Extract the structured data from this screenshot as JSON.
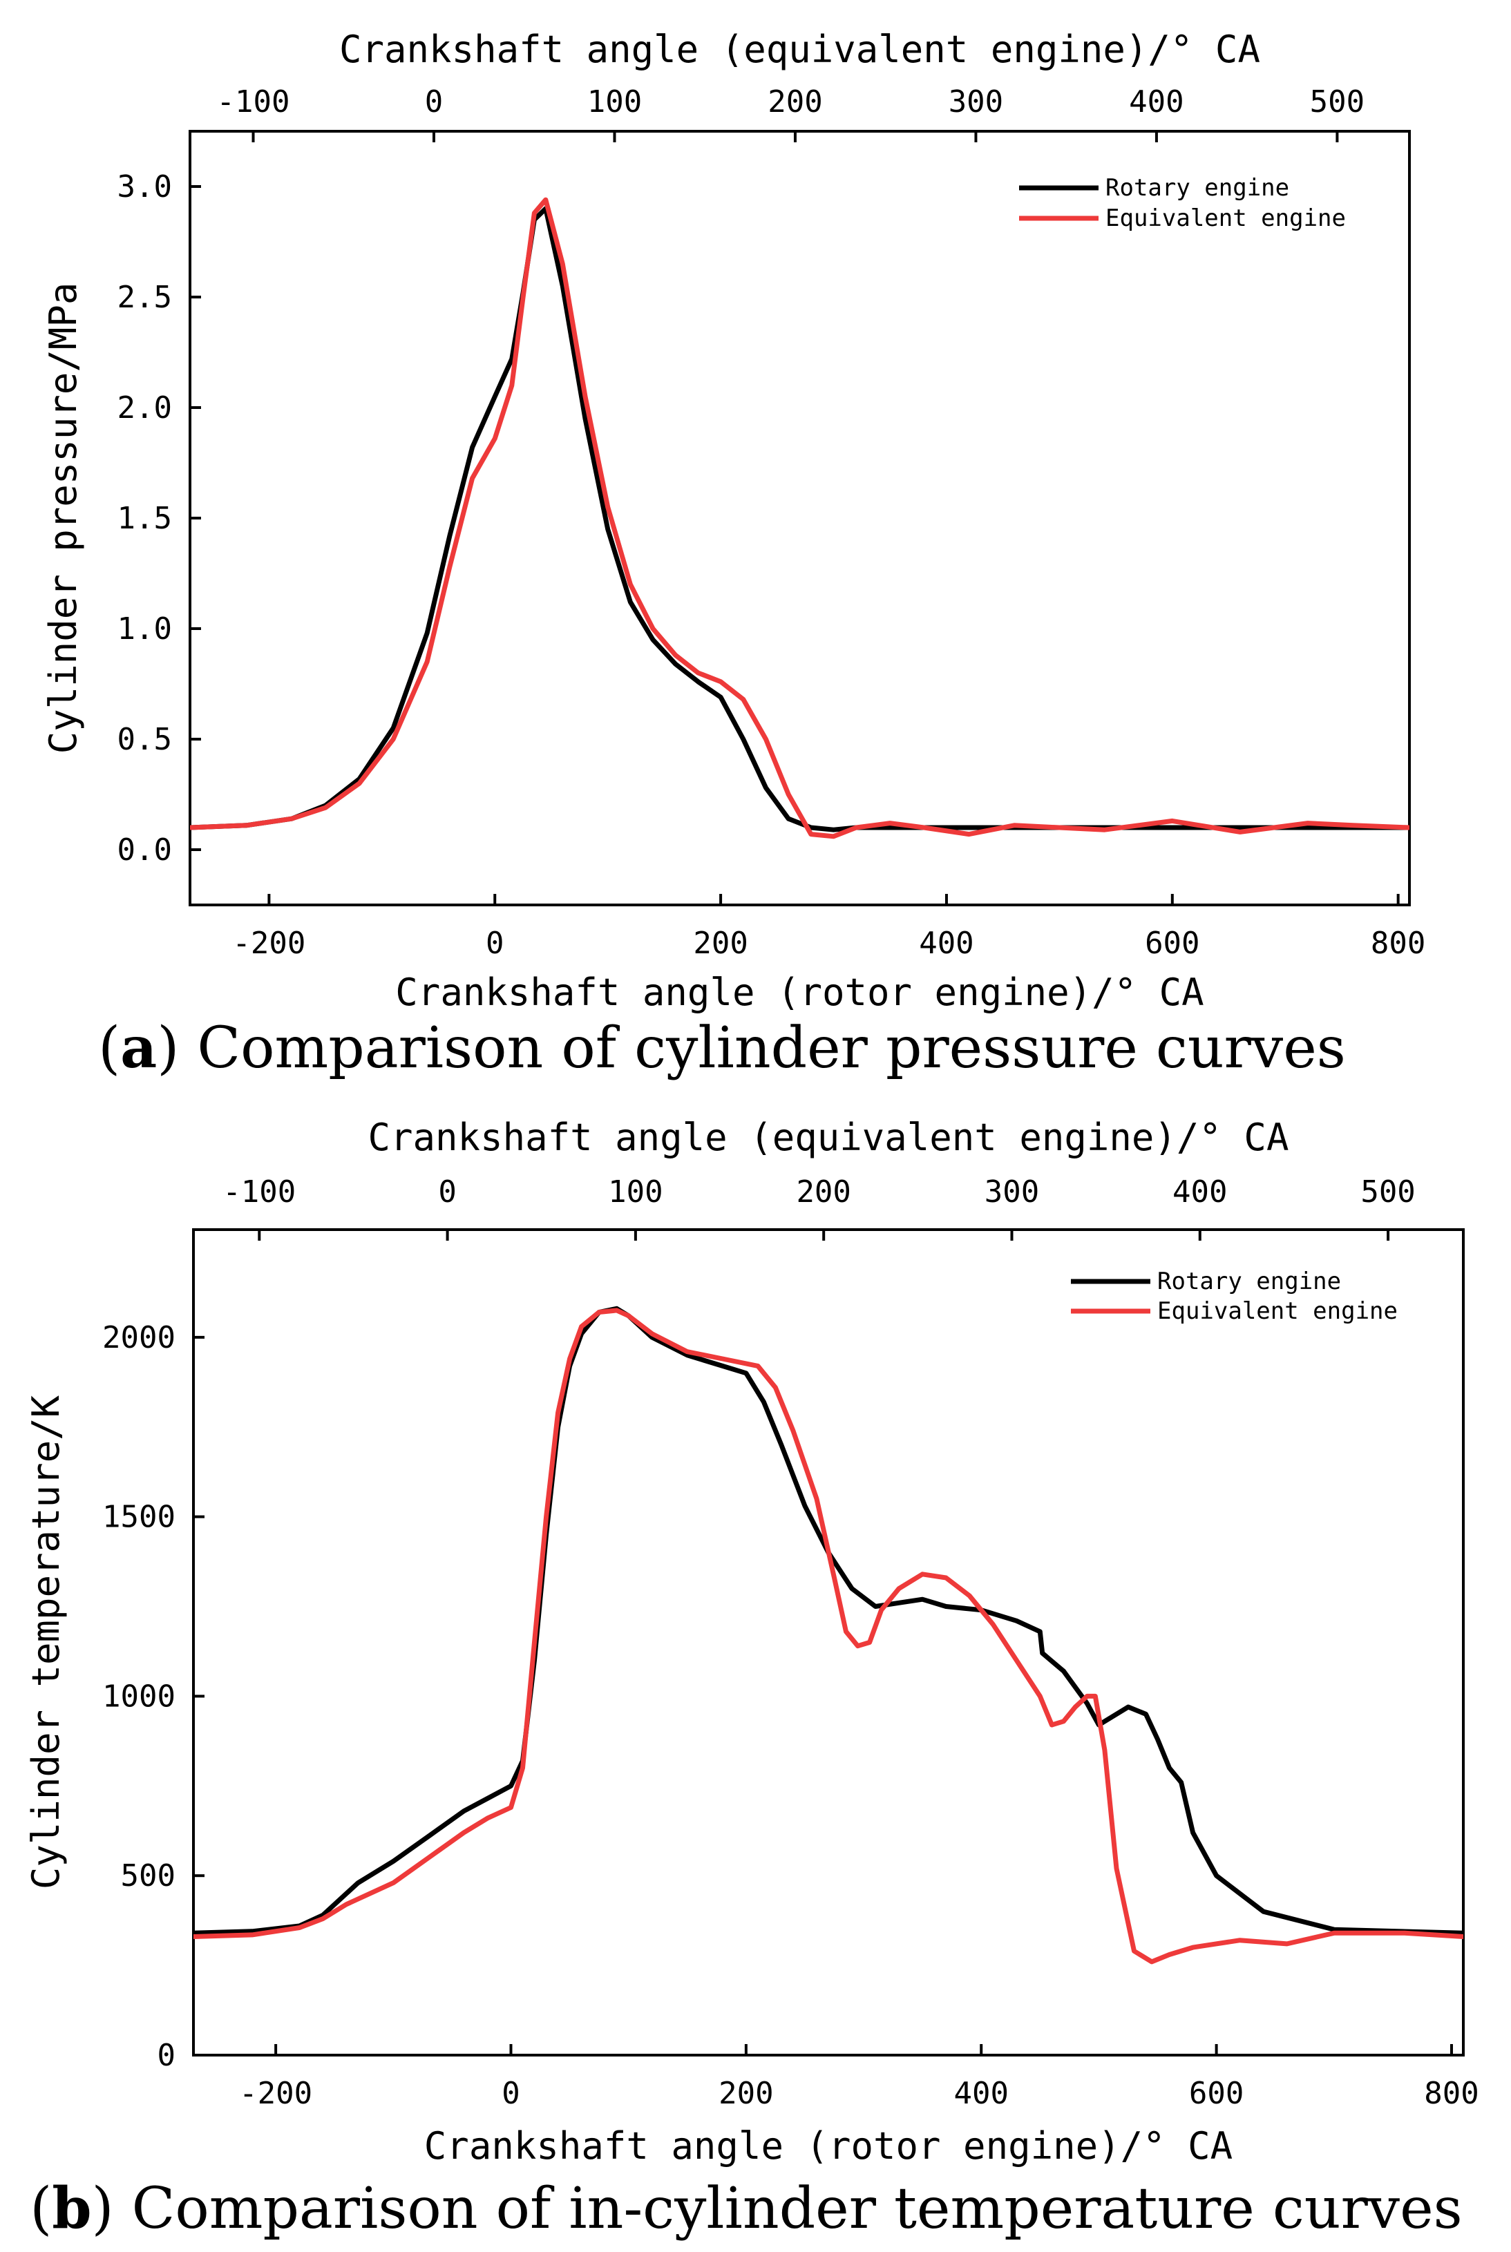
{
  "chart_data": [
    {
      "type": "line",
      "id": "a",
      "caption_letter": "a",
      "caption_text": "Comparison of cylinder pressure curves",
      "caption_open": "(",
      "caption_close": ")",
      "xlabel": "Crankshaft angle (rotor engine)/° CA",
      "x2label": "Crankshaft angle (equivalent engine)/° CA",
      "ylabel": "Cylinder pressure/MPa",
      "xlim": [
        -270,
        810
      ],
      "ylim": [
        -0.25,
        3.25
      ],
      "x2lim": [
        -135,
        540
      ],
      "xticks": [
        -200,
        0,
        200,
        400,
        600,
        800
      ],
      "xtick_labels": [
        "-200",
        "0",
        "200",
        "400",
        "600",
        "800"
      ],
      "x2ticks": [
        -100,
        0,
        100,
        200,
        300,
        400,
        500
      ],
      "x2tick_labels": [
        "-100",
        "0",
        "100",
        "200",
        "300",
        "400",
        "500"
      ],
      "yticks": [
        0,
        0.5,
        1.0,
        1.5,
        2.0,
        2.5,
        3.0
      ],
      "ytick_labels": [
        "0.0",
        "0.5",
        "1.0",
        "1.5",
        "2.0",
        "2.5",
        "3.0"
      ],
      "legend_position": "top-right",
      "series": [
        {
          "name": "Rotary engine",
          "color": "#000000",
          "x": [
            -270,
            -220,
            -180,
            -150,
            -120,
            -90,
            -60,
            -40,
            -20,
            0,
            15,
            25,
            35,
            45,
            60,
            80,
            100,
            120,
            140,
            160,
            180,
            200,
            220,
            240,
            260,
            280,
            300,
            320,
            400,
            500,
            600,
            700,
            810
          ],
          "y": [
            0.1,
            0.11,
            0.14,
            0.2,
            0.32,
            0.55,
            0.98,
            1.42,
            1.82,
            2.05,
            2.22,
            2.52,
            2.85,
            2.9,
            2.55,
            1.95,
            1.45,
            1.12,
            0.95,
            0.84,
            0.76,
            0.69,
            0.5,
            0.28,
            0.14,
            0.1,
            0.09,
            0.1,
            0.1,
            0.1,
            0.1,
            0.1,
            0.1
          ]
        },
        {
          "name": "Equivalent engine",
          "color": "#ee3a3a",
          "x": [
            -270,
            -220,
            -180,
            -150,
            -120,
            -90,
            -60,
            -40,
            -20,
            0,
            15,
            25,
            35,
            45,
            60,
            80,
            100,
            120,
            140,
            160,
            180,
            200,
            220,
            240,
            260,
            280,
            300,
            320,
            350,
            380,
            420,
            460,
            500,
            540,
            600,
            660,
            720,
            760,
            810
          ],
          "y": [
            0.1,
            0.11,
            0.14,
            0.19,
            0.3,
            0.5,
            0.85,
            1.28,
            1.68,
            1.86,
            2.1,
            2.5,
            2.88,
            2.94,
            2.65,
            2.05,
            1.55,
            1.2,
            1.0,
            0.88,
            0.8,
            0.76,
            0.68,
            0.5,
            0.25,
            0.07,
            0.06,
            0.1,
            0.12,
            0.1,
            0.07,
            0.11,
            0.1,
            0.09,
            0.13,
            0.08,
            0.12,
            0.11,
            0.1
          ]
        }
      ]
    },
    {
      "type": "line",
      "id": "b",
      "caption_letter": "b",
      "caption_text": "Comparison of in-cylinder temperature curves",
      "caption_open": "(",
      "caption_close": ")",
      "xlabel": "Crankshaft angle (rotor engine)/° CA",
      "x2label": "Crankshaft angle (equivalent engine)/° CA",
      "ylabel": "Cylinder temperature/K",
      "xlim": [
        -270,
        810
      ],
      "ylim": [
        0,
        2300
      ],
      "x2lim": [
        -135,
        540
      ],
      "xticks": [
        -200,
        0,
        200,
        400,
        600,
        800
      ],
      "xtick_labels": [
        "-200",
        "0",
        "200",
        "400",
        "600",
        "800"
      ],
      "x2ticks": [
        -100,
        0,
        100,
        200,
        300,
        400,
        500
      ],
      "x2tick_labels": [
        "-100",
        "0",
        "100",
        "200",
        "300",
        "400",
        "500"
      ],
      "yticks": [
        0,
        500,
        1000,
        1500,
        2000
      ],
      "ytick_labels": [
        "0",
        "500",
        "1000",
        "1500",
        "2000"
      ],
      "legend_position": "top-right",
      "series": [
        {
          "name": "Rotary engine",
          "color": "#000000",
          "x": [
            -270,
            -220,
            -180,
            -160,
            -140,
            -130,
            -100,
            -70,
            -40,
            -20,
            0,
            10,
            20,
            30,
            40,
            50,
            60,
            75,
            90,
            100,
            120,
            150,
            180,
            200,
            215,
            230,
            250,
            270,
            290,
            310,
            330,
            350,
            370,
            400,
            430,
            450,
            452,
            470,
            490,
            500,
            515,
            525,
            540,
            550,
            560,
            570,
            580,
            600,
            640,
            700,
            810
          ],
          "y": [
            340,
            345,
            360,
            390,
            450,
            480,
            540,
            610,
            680,
            715,
            750,
            820,
            1100,
            1450,
            1750,
            1920,
            2010,
            2070,
            2080,
            2060,
            2000,
            1950,
            1920,
            1900,
            1820,
            1700,
            1530,
            1400,
            1300,
            1250,
            1260,
            1270,
            1250,
            1240,
            1210,
            1180,
            1120,
            1070,
            980,
            920,
            950,
            970,
            950,
            880,
            800,
            760,
            620,
            500,
            400,
            350,
            340
          ]
        },
        {
          "name": "Equivalent engine",
          "color": "#ee3a3a",
          "x": [
            -270,
            -220,
            -180,
            -160,
            -140,
            -100,
            -70,
            -40,
            -20,
            0,
            10,
            20,
            30,
            40,
            50,
            60,
            75,
            90,
            100,
            120,
            150,
            180,
            210,
            225,
            240,
            260,
            275,
            285,
            295,
            305,
            315,
            330,
            350,
            370,
            390,
            410,
            430,
            450,
            460,
            470,
            480,
            490,
            497,
            505,
            515,
            530,
            545,
            560,
            580,
            620,
            660,
            700,
            760,
            810
          ],
          "y": [
            330,
            335,
            355,
            380,
            420,
            480,
            550,
            620,
            660,
            690,
            800,
            1150,
            1500,
            1790,
            1940,
            2030,
            2070,
            2075,
            2060,
            2010,
            1960,
            1940,
            1920,
            1860,
            1740,
            1550,
            1330,
            1180,
            1140,
            1150,
            1240,
            1300,
            1340,
            1330,
            1280,
            1200,
            1100,
            1000,
            920,
            930,
            970,
            1000,
            1000,
            850,
            520,
            290,
            260,
            280,
            300,
            320,
            310,
            340,
            340,
            330
          ]
        }
      ]
    }
  ]
}
